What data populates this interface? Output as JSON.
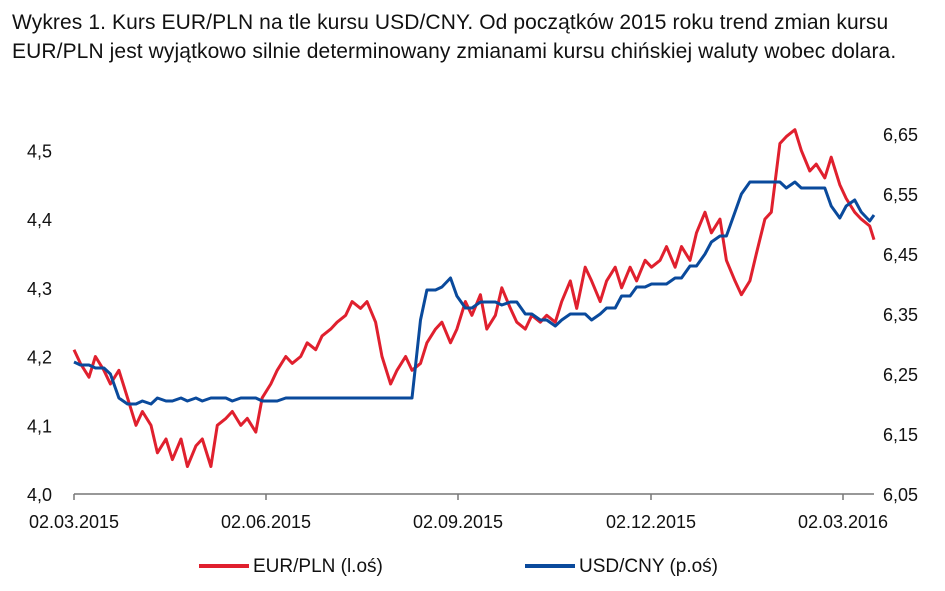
{
  "title": "Wykres 1. Kurs EUR/PLN na tle kursu USD/CNY. Od początków 2015 roku trend zmian kursu EUR/PLN jest wyjątkowo silnie determinowany zmianami kursu chińskiej waluty wobec dolara.",
  "colors": {
    "eurpln": "#e0202e",
    "usdcny": "#0a4a9c",
    "axis": "#777777"
  },
  "chart_data": {
    "type": "line",
    "title": "Wykres 1. Kurs EUR/PLN na tle kursu USD/CNY. Od początków 2015 roku trend zmian kursu EUR/PLN jest wyjątkowo silnie determinowany zmianami kursu chińskiej waluty wobec dolara.",
    "x_ticks": [
      "02.03.2015",
      "02.06.2015",
      "02.09.2015",
      "02.12.2015",
      "02.03.2016"
    ],
    "y_left": {
      "range": [
        4.0,
        4.55
      ],
      "ticks": [
        "4,0",
        "4,1",
        "4,2",
        "4,3",
        "4,4",
        "4,5"
      ],
      "tick_values": [
        4.0,
        4.1,
        4.2,
        4.3,
        4.4,
        4.5
      ]
    },
    "y_right": {
      "range": [
        6.05,
        6.68
      ],
      "ticks": [
        "6,05",
        "6,15",
        "6,25",
        "6,35",
        "6,45",
        "6,55",
        "6,65"
      ],
      "tick_values": [
        6.05,
        6.15,
        6.25,
        6.35,
        6.45,
        6.55,
        6.65
      ]
    },
    "grid": false,
    "legend_position": "bottom",
    "series": [
      {
        "name": "EUR/PLN (l.oś)",
        "axis": "left",
        "x": [
          "2015-03-02",
          "2015-03-05",
          "2015-03-09",
          "2015-03-12",
          "2015-03-16",
          "2015-03-19",
          "2015-03-23",
          "2015-03-27",
          "2015-03-31",
          "2015-04-03",
          "2015-04-07",
          "2015-04-10",
          "2015-04-14",
          "2015-04-17",
          "2015-04-21",
          "2015-04-24",
          "2015-04-28",
          "2015-05-01",
          "2015-05-05",
          "2015-05-08",
          "2015-05-12",
          "2015-05-15",
          "2015-05-19",
          "2015-05-22",
          "2015-05-26",
          "2015-05-29",
          "2015-06-02",
          "2015-06-05",
          "2015-06-09",
          "2015-06-12",
          "2015-06-16",
          "2015-06-19",
          "2015-06-23",
          "2015-06-26",
          "2015-06-30",
          "2015-07-03",
          "2015-07-07",
          "2015-07-10",
          "2015-07-14",
          "2015-07-17",
          "2015-07-21",
          "2015-07-24",
          "2015-07-28",
          "2015-07-31",
          "2015-08-04",
          "2015-08-07",
          "2015-08-11",
          "2015-08-14",
          "2015-08-18",
          "2015-08-21",
          "2015-08-25",
          "2015-08-28",
          "2015-09-01",
          "2015-09-04",
          "2015-09-08",
          "2015-09-11",
          "2015-09-15",
          "2015-09-18",
          "2015-09-22",
          "2015-09-25",
          "2015-09-29",
          "2015-10-02",
          "2015-10-06",
          "2015-10-09",
          "2015-10-13",
          "2015-10-16",
          "2015-10-20",
          "2015-10-23",
          "2015-10-27",
          "2015-10-30",
          "2015-11-03",
          "2015-11-06",
          "2015-11-10",
          "2015-11-13",
          "2015-11-17",
          "2015-11-20",
          "2015-11-24",
          "2015-11-27",
          "2015-12-01",
          "2015-12-04",
          "2015-12-08",
          "2015-12-11",
          "2015-12-15",
          "2015-12-18",
          "2015-12-22",
          "2015-12-25",
          "2015-12-29",
          "2016-01-01",
          "2016-01-05",
          "2016-01-08",
          "2016-01-12",
          "2016-01-15",
          "2016-01-19",
          "2016-01-22",
          "2016-01-26",
          "2016-01-29",
          "2016-02-02",
          "2016-02-05",
          "2016-02-09",
          "2016-02-12",
          "2016-02-16",
          "2016-02-19",
          "2016-02-23",
          "2016-02-26",
          "2016-03-01",
          "2016-03-04",
          "2016-03-08",
          "2016-03-10"
        ],
        "y": [
          4.21,
          4.19,
          4.17,
          4.2,
          4.18,
          4.16,
          4.18,
          4.14,
          4.1,
          4.12,
          4.1,
          4.06,
          4.08,
          4.05,
          4.08,
          4.04,
          4.07,
          4.08,
          4.04,
          4.1,
          4.11,
          4.12,
          4.1,
          4.11,
          4.09,
          4.14,
          4.16,
          4.18,
          4.2,
          4.19,
          4.2,
          4.22,
          4.21,
          4.23,
          4.24,
          4.25,
          4.26,
          4.28,
          4.27,
          4.28,
          4.25,
          4.2,
          4.16,
          4.18,
          4.2,
          4.18,
          4.19,
          4.22,
          4.24,
          4.25,
          4.22,
          4.24,
          4.28,
          4.26,
          4.29,
          4.24,
          4.26,
          4.3,
          4.27,
          4.25,
          4.24,
          4.26,
          4.25,
          4.26,
          4.25,
          4.28,
          4.31,
          4.27,
          4.33,
          4.31,
          4.28,
          4.31,
          4.33,
          4.3,
          4.33,
          4.31,
          4.34,
          4.33,
          4.34,
          4.36,
          4.33,
          4.36,
          4.34,
          4.38,
          4.41,
          4.38,
          4.4,
          4.34,
          4.31,
          4.29,
          4.31,
          4.35,
          4.4,
          4.41,
          4.51,
          4.52,
          4.53,
          4.5,
          4.47,
          4.48,
          4.46,
          4.49,
          4.45,
          4.43,
          4.41,
          4.4,
          4.39,
          4.37
        ]
      },
      {
        "name": "USD/CNY (p.oś)",
        "axis": "right",
        "x": [
          "2015-03-02",
          "2015-03-05",
          "2015-03-09",
          "2015-03-12",
          "2015-03-16",
          "2015-03-19",
          "2015-03-23",
          "2015-03-27",
          "2015-03-31",
          "2015-04-03",
          "2015-04-07",
          "2015-04-10",
          "2015-04-14",
          "2015-04-17",
          "2015-04-21",
          "2015-04-24",
          "2015-04-28",
          "2015-05-01",
          "2015-05-05",
          "2015-05-08",
          "2015-05-12",
          "2015-05-15",
          "2015-05-19",
          "2015-05-22",
          "2015-05-26",
          "2015-05-29",
          "2015-06-02",
          "2015-06-05",
          "2015-06-09",
          "2015-06-12",
          "2015-06-16",
          "2015-06-19",
          "2015-06-23",
          "2015-06-26",
          "2015-06-30",
          "2015-07-03",
          "2015-07-07",
          "2015-07-10",
          "2015-07-14",
          "2015-07-17",
          "2015-07-21",
          "2015-07-24",
          "2015-07-28",
          "2015-07-31",
          "2015-08-04",
          "2015-08-07",
          "2015-08-11",
          "2015-08-14",
          "2015-08-18",
          "2015-08-21",
          "2015-08-25",
          "2015-08-28",
          "2015-09-01",
          "2015-09-04",
          "2015-09-08",
          "2015-09-11",
          "2015-09-15",
          "2015-09-18",
          "2015-09-22",
          "2015-09-25",
          "2015-09-29",
          "2015-10-02",
          "2015-10-06",
          "2015-10-09",
          "2015-10-13",
          "2015-10-16",
          "2015-10-20",
          "2015-10-23",
          "2015-10-27",
          "2015-10-30",
          "2015-11-03",
          "2015-11-06",
          "2015-11-10",
          "2015-11-13",
          "2015-11-17",
          "2015-11-20",
          "2015-11-24",
          "2015-11-27",
          "2015-12-01",
          "2015-12-04",
          "2015-12-08",
          "2015-12-11",
          "2015-12-15",
          "2015-12-18",
          "2015-12-22",
          "2015-12-25",
          "2015-12-29",
          "2016-01-01",
          "2016-01-05",
          "2016-01-08",
          "2016-01-12",
          "2016-01-15",
          "2016-01-19",
          "2016-01-22",
          "2016-01-26",
          "2016-01-29",
          "2016-02-02",
          "2016-02-05",
          "2016-02-09",
          "2016-02-12",
          "2016-02-16",
          "2016-02-19",
          "2016-02-23",
          "2016-02-26",
          "2016-03-01",
          "2016-03-04",
          "2016-03-08",
          "2016-03-10"
        ],
        "y": [
          6.27,
          6.265,
          6.265,
          6.26,
          6.26,
          6.25,
          6.21,
          6.2,
          6.2,
          6.205,
          6.2,
          6.21,
          6.205,
          6.205,
          6.21,
          6.205,
          6.21,
          6.205,
          6.21,
          6.21,
          6.21,
          6.205,
          6.21,
          6.21,
          6.21,
          6.205,
          6.205,
          6.205,
          6.21,
          6.21,
          6.21,
          6.21,
          6.21,
          6.21,
          6.21,
          6.21,
          6.21,
          6.21,
          6.21,
          6.21,
          6.21,
          6.21,
          6.21,
          6.21,
          6.21,
          6.21,
          6.34,
          6.39,
          6.39,
          6.395,
          6.41,
          6.38,
          6.36,
          6.36,
          6.37,
          6.37,
          6.37,
          6.365,
          6.37,
          6.37,
          6.35,
          6.35,
          6.34,
          6.34,
          6.33,
          6.34,
          6.35,
          6.35,
          6.35,
          6.34,
          6.35,
          6.36,
          6.36,
          6.38,
          6.38,
          6.395,
          6.395,
          6.4,
          6.4,
          6.4,
          6.41,
          6.41,
          6.43,
          6.43,
          6.45,
          6.47,
          6.48,
          6.48,
          6.52,
          6.55,
          6.57,
          6.57,
          6.57,
          6.57,
          6.57,
          6.56,
          6.57,
          6.56,
          6.56,
          6.56,
          6.56,
          6.53,
          6.51,
          6.53,
          6.54,
          6.52,
          6.505,
          6.515
        ]
      }
    ]
  },
  "legend": [
    {
      "label": "EUR/PLN (l.oś)"
    },
    {
      "label": "USD/CNY (p.oś)"
    }
  ]
}
